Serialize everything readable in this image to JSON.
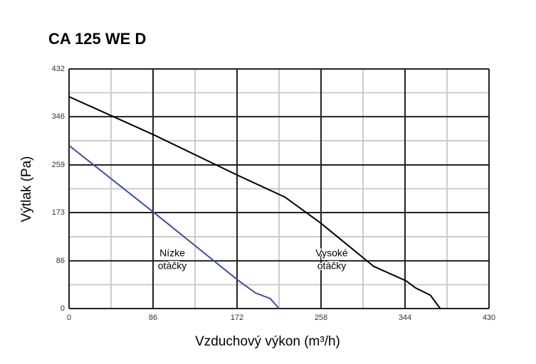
{
  "chart_data": {
    "type": "line",
    "title": "CA 125 WE D",
    "x_label": "Vzduchový výkon (m³/h)",
    "y_label": "Výtlak (Pa)",
    "xlim": [
      0,
      430
    ],
    "xticks": [
      0,
      86,
      172,
      258,
      344,
      430
    ],
    "ylim": [
      0,
      432
    ],
    "yticks": [
      0,
      86,
      173,
      259,
      346,
      432
    ],
    "grid": true,
    "series": [
      {
        "name": "Vysoké otáčky",
        "color": "#000000",
        "x": [
          0,
          87,
          173,
          221,
          257,
          312,
          345,
          355,
          370,
          380
        ],
        "values": [
          382,
          313,
          240,
          201,
          155,
          76,
          50,
          37,
          24,
          0
        ]
      },
      {
        "name": "Nízke otáčky",
        "color": "#3a4fa0",
        "x": [
          0,
          87,
          173,
          191,
          206,
          215
        ],
        "values": [
          294,
          173,
          51,
          28,
          18,
          0
        ]
      }
    ],
    "annotations": [
      [
        "Nízke",
        "otáčky"
      ],
      [
        "Vysoké",
        "otáčky"
      ]
    ]
  }
}
